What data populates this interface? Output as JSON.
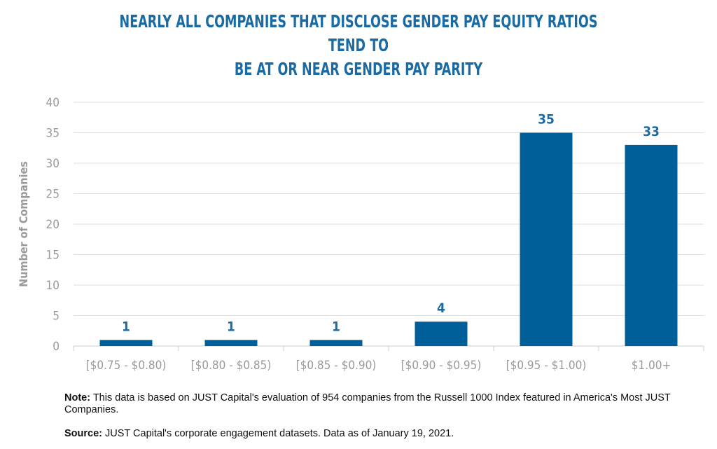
{
  "title": {
    "line1": "NEARLY ALL COMPANIES THAT DISCLOSE GENDER PAY EQUITY RATIOS TEND TO",
    "line2": "BE AT OR NEAR GENDER PAY PARITY"
  },
  "colors": {
    "bar": "#005f99",
    "title": "#1a6aa3",
    "label": "#1a6aa3",
    "axis_text": "#9a9a9a",
    "grid": "#dddddd"
  },
  "chart_data": {
    "type": "bar",
    "title": "NEARLY ALL COMPANIES THAT DISCLOSE GENDER PAY EQUITY RATIOS TEND TO BE AT OR NEAR GENDER PAY PARITY",
    "categories": [
      "[$0.75 - $0.80)",
      "[$0.80 - $0.85)",
      "[$0.85 - $0.90)",
      "[$0.90 - $0.95)",
      "[$0.95 - $1.00)",
      "$1.00+"
    ],
    "values": [
      1,
      1,
      1,
      4,
      35,
      33
    ],
    "data_labels": [
      "1",
      "1",
      "1",
      "4",
      "35",
      "33"
    ],
    "xlabel": "",
    "ylabel": "Number of Companies",
    "ylim": [
      0,
      40
    ],
    "yticks": [
      0,
      5,
      10,
      15,
      20,
      25,
      30,
      35,
      40
    ],
    "grid": true,
    "legend": false
  },
  "note": {
    "label": "Note:",
    "text": " This data is based on JUST Capital's evaluation of 954 companies from the Russell 1000 Index featured in America's Most JUST Companies."
  },
  "source": {
    "label": "Source:",
    "text": " JUST Capital's corporate engagement datasets. Data as of January 19, 2021."
  }
}
